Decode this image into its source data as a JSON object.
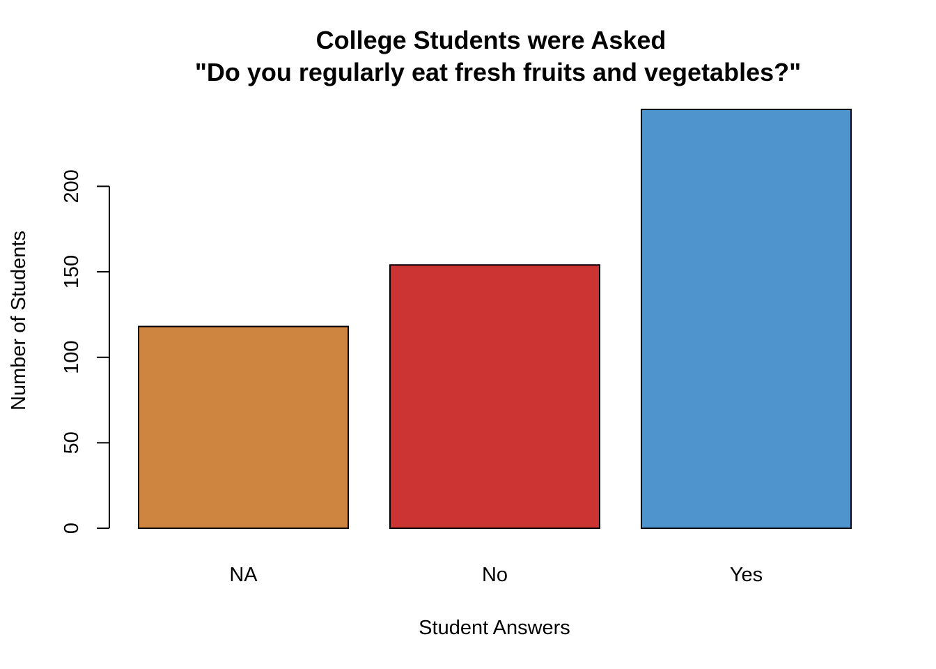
{
  "chart_data": {
    "type": "bar",
    "title_lines": [
      "College Students were Asked",
      "\"Do you regularly eat fresh fruits and vegetables?\""
    ],
    "xlabel": "Student Answers",
    "ylabel": "Number of Students",
    "categories": [
      "NA",
      "No",
      "Yes"
    ],
    "values": [
      118,
      154,
      245
    ],
    "colors": [
      "#CD853F",
      "#CC3333",
      "#4F94CD"
    ],
    "yticks": [
      0,
      50,
      100,
      150,
      200
    ],
    "ylim": [
      0,
      245
    ],
    "grid": false,
    "legend": "none"
  }
}
